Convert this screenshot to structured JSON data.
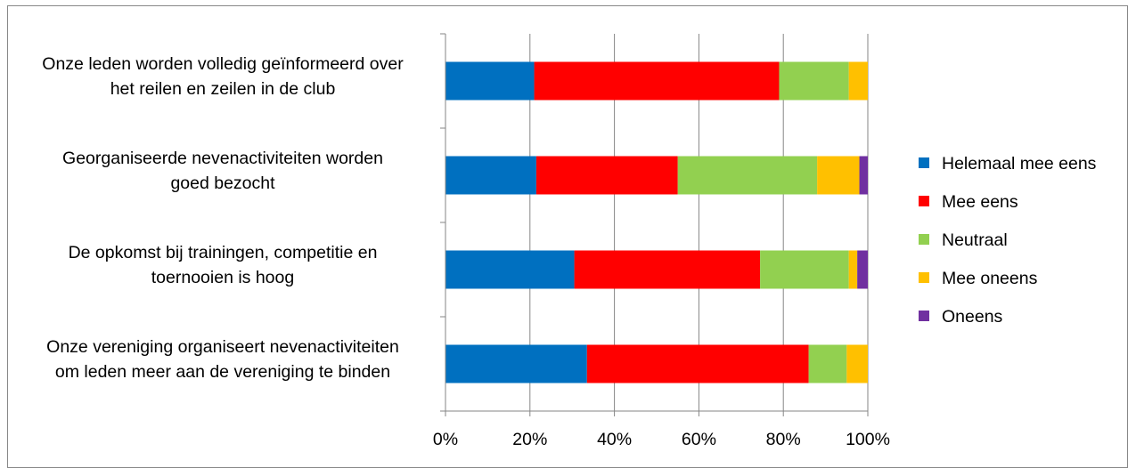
{
  "chart_data": {
    "type": "bar",
    "orientation": "horizontal",
    "stacked": "percent",
    "categories": [
      "Onze leden worden volledig geïnformeerd over het reilen en zeilen in de club",
      "Georganiseerde nevenactiviteiten worden goed bezocht",
      "De opkomst bij trainingen, competitie en toernooien is hoog",
      "Onze vereniging organiseert nevenactiviteiten om leden meer aan de vereniging te binden"
    ],
    "category_lines": [
      [
        "Onze leden worden volledig geïnformeerd over",
        "het reilen en zeilen in de club"
      ],
      [
        "Georganiseerde nevenactiviteiten worden",
        "goed bezocht"
      ],
      [
        "De opkomst bij trainingen, competitie en",
        "toernooien is hoog"
      ],
      [
        "Onze vereniging organiseert nevenactiviteiten",
        "om leden meer aan de vereniging te binden"
      ]
    ],
    "series": [
      {
        "name": "Helemaal mee eens",
        "color": "#0070C0",
        "values": [
          21,
          21.5,
          30.5,
          33.5
        ]
      },
      {
        "name": "Mee eens",
        "color": "#FF0000",
        "values": [
          58,
          33.5,
          44,
          52.5
        ]
      },
      {
        "name": "Neutraal",
        "color": "#92D050",
        "values": [
          16.5,
          33,
          21,
          9
        ]
      },
      {
        "name": "Mee oneens",
        "color": "#FFC000",
        "values": [
          4.5,
          10,
          2,
          5
        ]
      },
      {
        "name": "Oneens",
        "color": "#7030A0",
        "values": [
          0,
          2,
          2.5,
          0
        ]
      }
    ],
    "xticks": [
      "0%",
      "20%",
      "40%",
      "60%",
      "80%",
      "100%"
    ],
    "xlim": [
      0,
      100
    ],
    "grid": true,
    "legend": "right",
    "title": "",
    "xlabel": "",
    "ylabel": ""
  }
}
